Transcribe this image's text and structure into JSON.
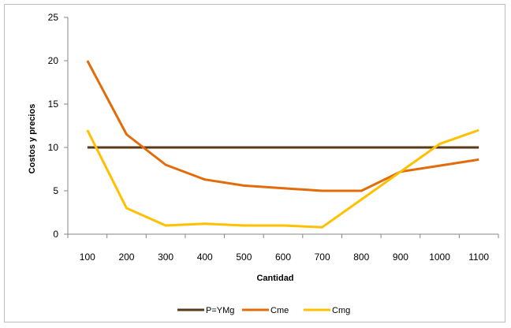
{
  "chart_data": {
    "type": "line",
    "title": "",
    "xlabel": "Cantidad",
    "ylabel": "Costos y precios",
    "categories": [
      "100",
      "200",
      "300",
      "400",
      "500",
      "600",
      "700",
      "800",
      "900",
      "1000",
      "1100"
    ],
    "ylim": [
      0,
      25
    ],
    "yticks": [
      0,
      5,
      10,
      15,
      20,
      25
    ],
    "grid": false,
    "legend_position": "bottom",
    "series": [
      {
        "name": "P=YMg",
        "color": "#5b3a17",
        "values": [
          10,
          10,
          10,
          10,
          10,
          10,
          10,
          10,
          10,
          10,
          10
        ]
      },
      {
        "name": "Cme",
        "color": "#e36c0a",
        "values": [
          20,
          11.5,
          8,
          6.3,
          5.6,
          5.3,
          5,
          5,
          7.2,
          7.9,
          8.6
        ]
      },
      {
        "name": "Cmg",
        "color": "#ffc000",
        "values": [
          12,
          3,
          1,
          1.2,
          1,
          1,
          0.8,
          4,
          7.2,
          10.4,
          12
        ]
      }
    ]
  }
}
